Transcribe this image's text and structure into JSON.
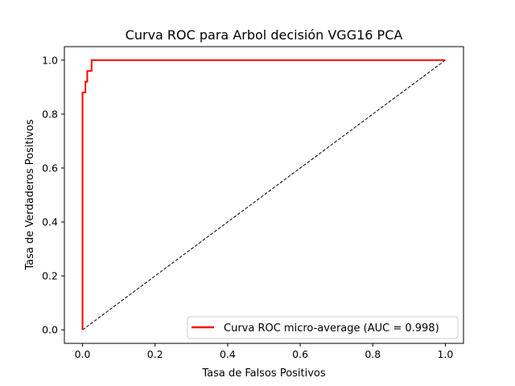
{
  "chart_data": {
    "type": "line",
    "title": "Curva ROC para Arbol decisión VGG16 PCA",
    "xlabel": "Tasa de Falsos Positivos",
    "ylabel": "Tasa de Verdaderos Positivos",
    "xlim": [
      -0.05,
      1.05
    ],
    "ylim": [
      -0.05,
      1.05
    ],
    "x_ticks": [
      0.0,
      0.2,
      0.4,
      0.6,
      0.8,
      1.0
    ],
    "y_ticks": [
      0.0,
      0.2,
      0.4,
      0.6,
      0.8,
      1.0
    ],
    "x_tick_labels": [
      "0.0",
      "0.2",
      "0.4",
      "0.6",
      "0.8",
      "1.0"
    ],
    "y_tick_labels": [
      "0.0",
      "0.2",
      "0.4",
      "0.6",
      "0.8",
      "1.0"
    ],
    "grid": false,
    "legend_position": "lower-right",
    "series": [
      {
        "name": "Curva ROC micro-average (AUC = 0.998)",
        "color": "#ff0000",
        "style": "solid",
        "x": [
          0.0,
          0.0,
          0.008,
          0.008,
          0.013,
          0.013,
          0.017,
          0.017,
          0.025,
          0.025,
          1.0
        ],
        "y": [
          0.0,
          0.88,
          0.88,
          0.92,
          0.92,
          0.96,
          0.96,
          0.96,
          0.96,
          1.0,
          1.0
        ]
      },
      {
        "color": "#000000",
        "style": "dashed",
        "x": [
          0.0,
          1.0
        ],
        "y": [
          0.0,
          1.0
        ]
      }
    ]
  }
}
